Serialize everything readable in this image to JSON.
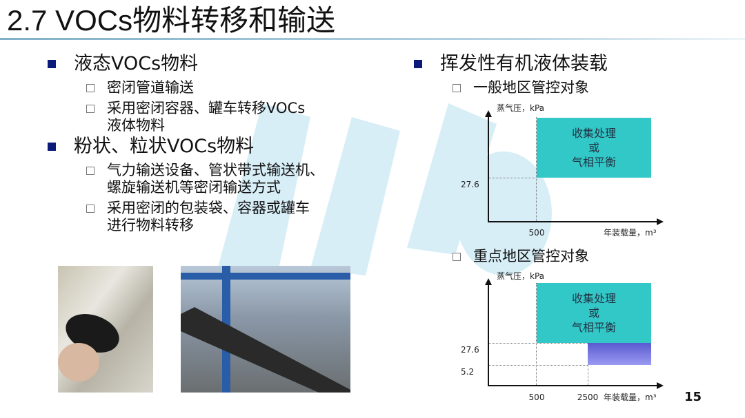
{
  "title": "2.7 VOCs物料转移和输送",
  "left": {
    "sections": [
      {
        "heading": "液态VOCs物料",
        "items": [
          {
            "lines": [
              "密闭管道输送"
            ]
          },
          {
            "lines": [
              "采用密闭容器、罐车转移VOCs",
              "液体物料"
            ]
          }
        ]
      },
      {
        "heading": "粉状、粒状VOCs物料",
        "items": [
          {
            "lines": [
              "气力输送设备、管状带式输送机、",
              "螺旋输送机等密闭输送方式"
            ]
          },
          {
            "lines": [
              "采用密闭的包装袋、容器或罐车",
              "进行物料转移"
            ]
          }
        ]
      }
    ]
  },
  "right": {
    "heading": "挥发性有机液体装载",
    "charts": [
      {
        "subtitle": "一般地区管控对象",
        "ylabel": "蒸气压，kPa",
        "xlabel": "年装载量，m³",
        "yticks": [
          "27.6"
        ],
        "xticks": [
          "500"
        ],
        "region_text": [
          "收集处理",
          "或",
          "气相平衡"
        ],
        "region_color": "#33c8c8"
      },
      {
        "subtitle": "重点地区管控对象",
        "ylabel": "蒸气压，kPa",
        "xlabel": "年装载量，m³",
        "yticks": [
          "27.6",
          "5.2"
        ],
        "xticks": [
          "500",
          "2500"
        ],
        "region_text": [
          "收集处理",
          "或",
          "气相平衡"
        ],
        "region_color": "#33c8c8",
        "secondary_region_color": "#7a7ae6"
      }
    ]
  },
  "page_number": "15",
  "colors": {
    "bullet": "#0c1a7a",
    "teal": "#33c8c8",
    "purple": "#7a7ae6"
  }
}
